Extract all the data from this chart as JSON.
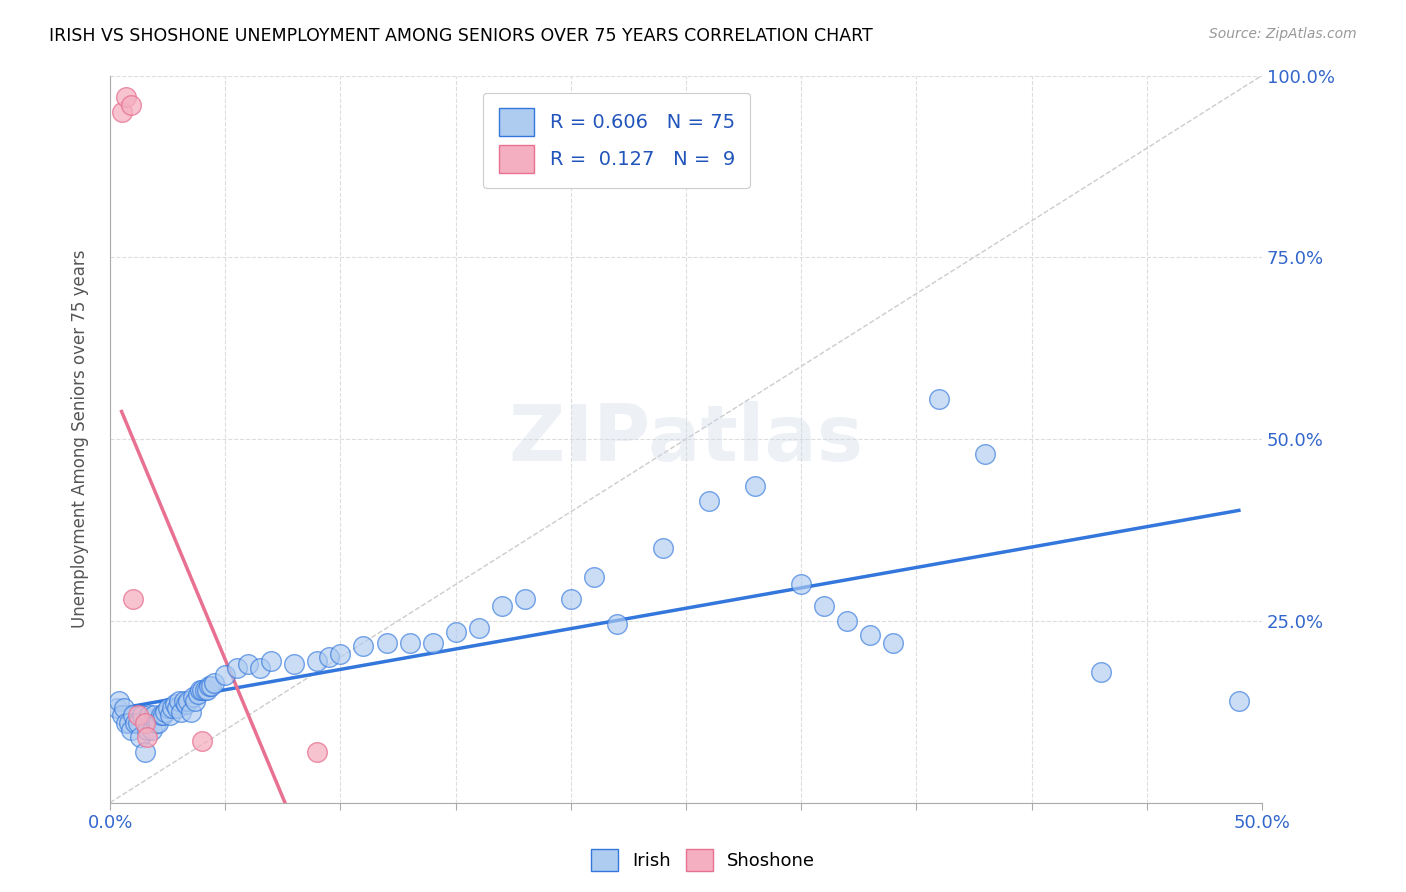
{
  "title": "IRISH VS SHOSHONE UNEMPLOYMENT AMONG SENIORS OVER 75 YEARS CORRELATION CHART",
  "source": "Source: ZipAtlas.com",
  "ylabel": "Unemployment Among Seniors over 75 years",
  "xlim": [
    0.0,
    0.5
  ],
  "ylim": [
    0.0,
    1.0
  ],
  "ytick_positions": [
    0.0,
    0.25,
    0.5,
    0.75,
    1.0
  ],
  "ytick_labels": [
    "",
    "25.0%",
    "50.0%",
    "75.0%",
    "100.0%"
  ],
  "irish_R": 0.606,
  "irish_N": 75,
  "shoshone_R": 0.127,
  "shoshone_N": 9,
  "irish_color": "#aecbf0",
  "shoshone_color": "#f4afc0",
  "irish_line_color": "#3377dd",
  "shoshone_line_color": "#e87090",
  "legend_color": "#2255bb",
  "irish_x": [
    0.003,
    0.004,
    0.005,
    0.006,
    0.007,
    0.008,
    0.009,
    0.01,
    0.011,
    0.012,
    0.013,
    0.014,
    0.015,
    0.016,
    0.017,
    0.018,
    0.019,
    0.02,
    0.021,
    0.022,
    0.023,
    0.024,
    0.025,
    0.026,
    0.027,
    0.028,
    0.029,
    0.03,
    0.031,
    0.032,
    0.033,
    0.034,
    0.035,
    0.036,
    0.037,
    0.038,
    0.039,
    0.04,
    0.041,
    0.042,
    0.043,
    0.044,
    0.045,
    0.05,
    0.055,
    0.06,
    0.065,
    0.07,
    0.08,
    0.09,
    0.095,
    0.1,
    0.11,
    0.12,
    0.13,
    0.14,
    0.15,
    0.16,
    0.17,
    0.18,
    0.2,
    0.21,
    0.22,
    0.24,
    0.26,
    0.28,
    0.3,
    0.31,
    0.32,
    0.33,
    0.34,
    0.36,
    0.38,
    0.43,
    0.49
  ],
  "irish_y": [
    0.13,
    0.14,
    0.12,
    0.13,
    0.11,
    0.11,
    0.1,
    0.12,
    0.11,
    0.11,
    0.09,
    0.12,
    0.07,
    0.1,
    0.12,
    0.1,
    0.12,
    0.11,
    0.11,
    0.12,
    0.12,
    0.125,
    0.13,
    0.12,
    0.13,
    0.135,
    0.13,
    0.14,
    0.125,
    0.14,
    0.135,
    0.14,
    0.125,
    0.145,
    0.14,
    0.15,
    0.155,
    0.155,
    0.155,
    0.155,
    0.16,
    0.16,
    0.165,
    0.175,
    0.185,
    0.19,
    0.185,
    0.195,
    0.19,
    0.195,
    0.2,
    0.205,
    0.215,
    0.22,
    0.22,
    0.22,
    0.235,
    0.24,
    0.27,
    0.28,
    0.28,
    0.31,
    0.245,
    0.35,
    0.415,
    0.435,
    0.3,
    0.27,
    0.25,
    0.23,
    0.22,
    0.555,
    0.48,
    0.18,
    0.14
  ],
  "shoshone_x": [
    0.005,
    0.007,
    0.009,
    0.01,
    0.012,
    0.015,
    0.016,
    0.04,
    0.09
  ],
  "shoshone_y": [
    0.95,
    0.97,
    0.96,
    0.28,
    0.12,
    0.11,
    0.09,
    0.085,
    0.07
  ]
}
